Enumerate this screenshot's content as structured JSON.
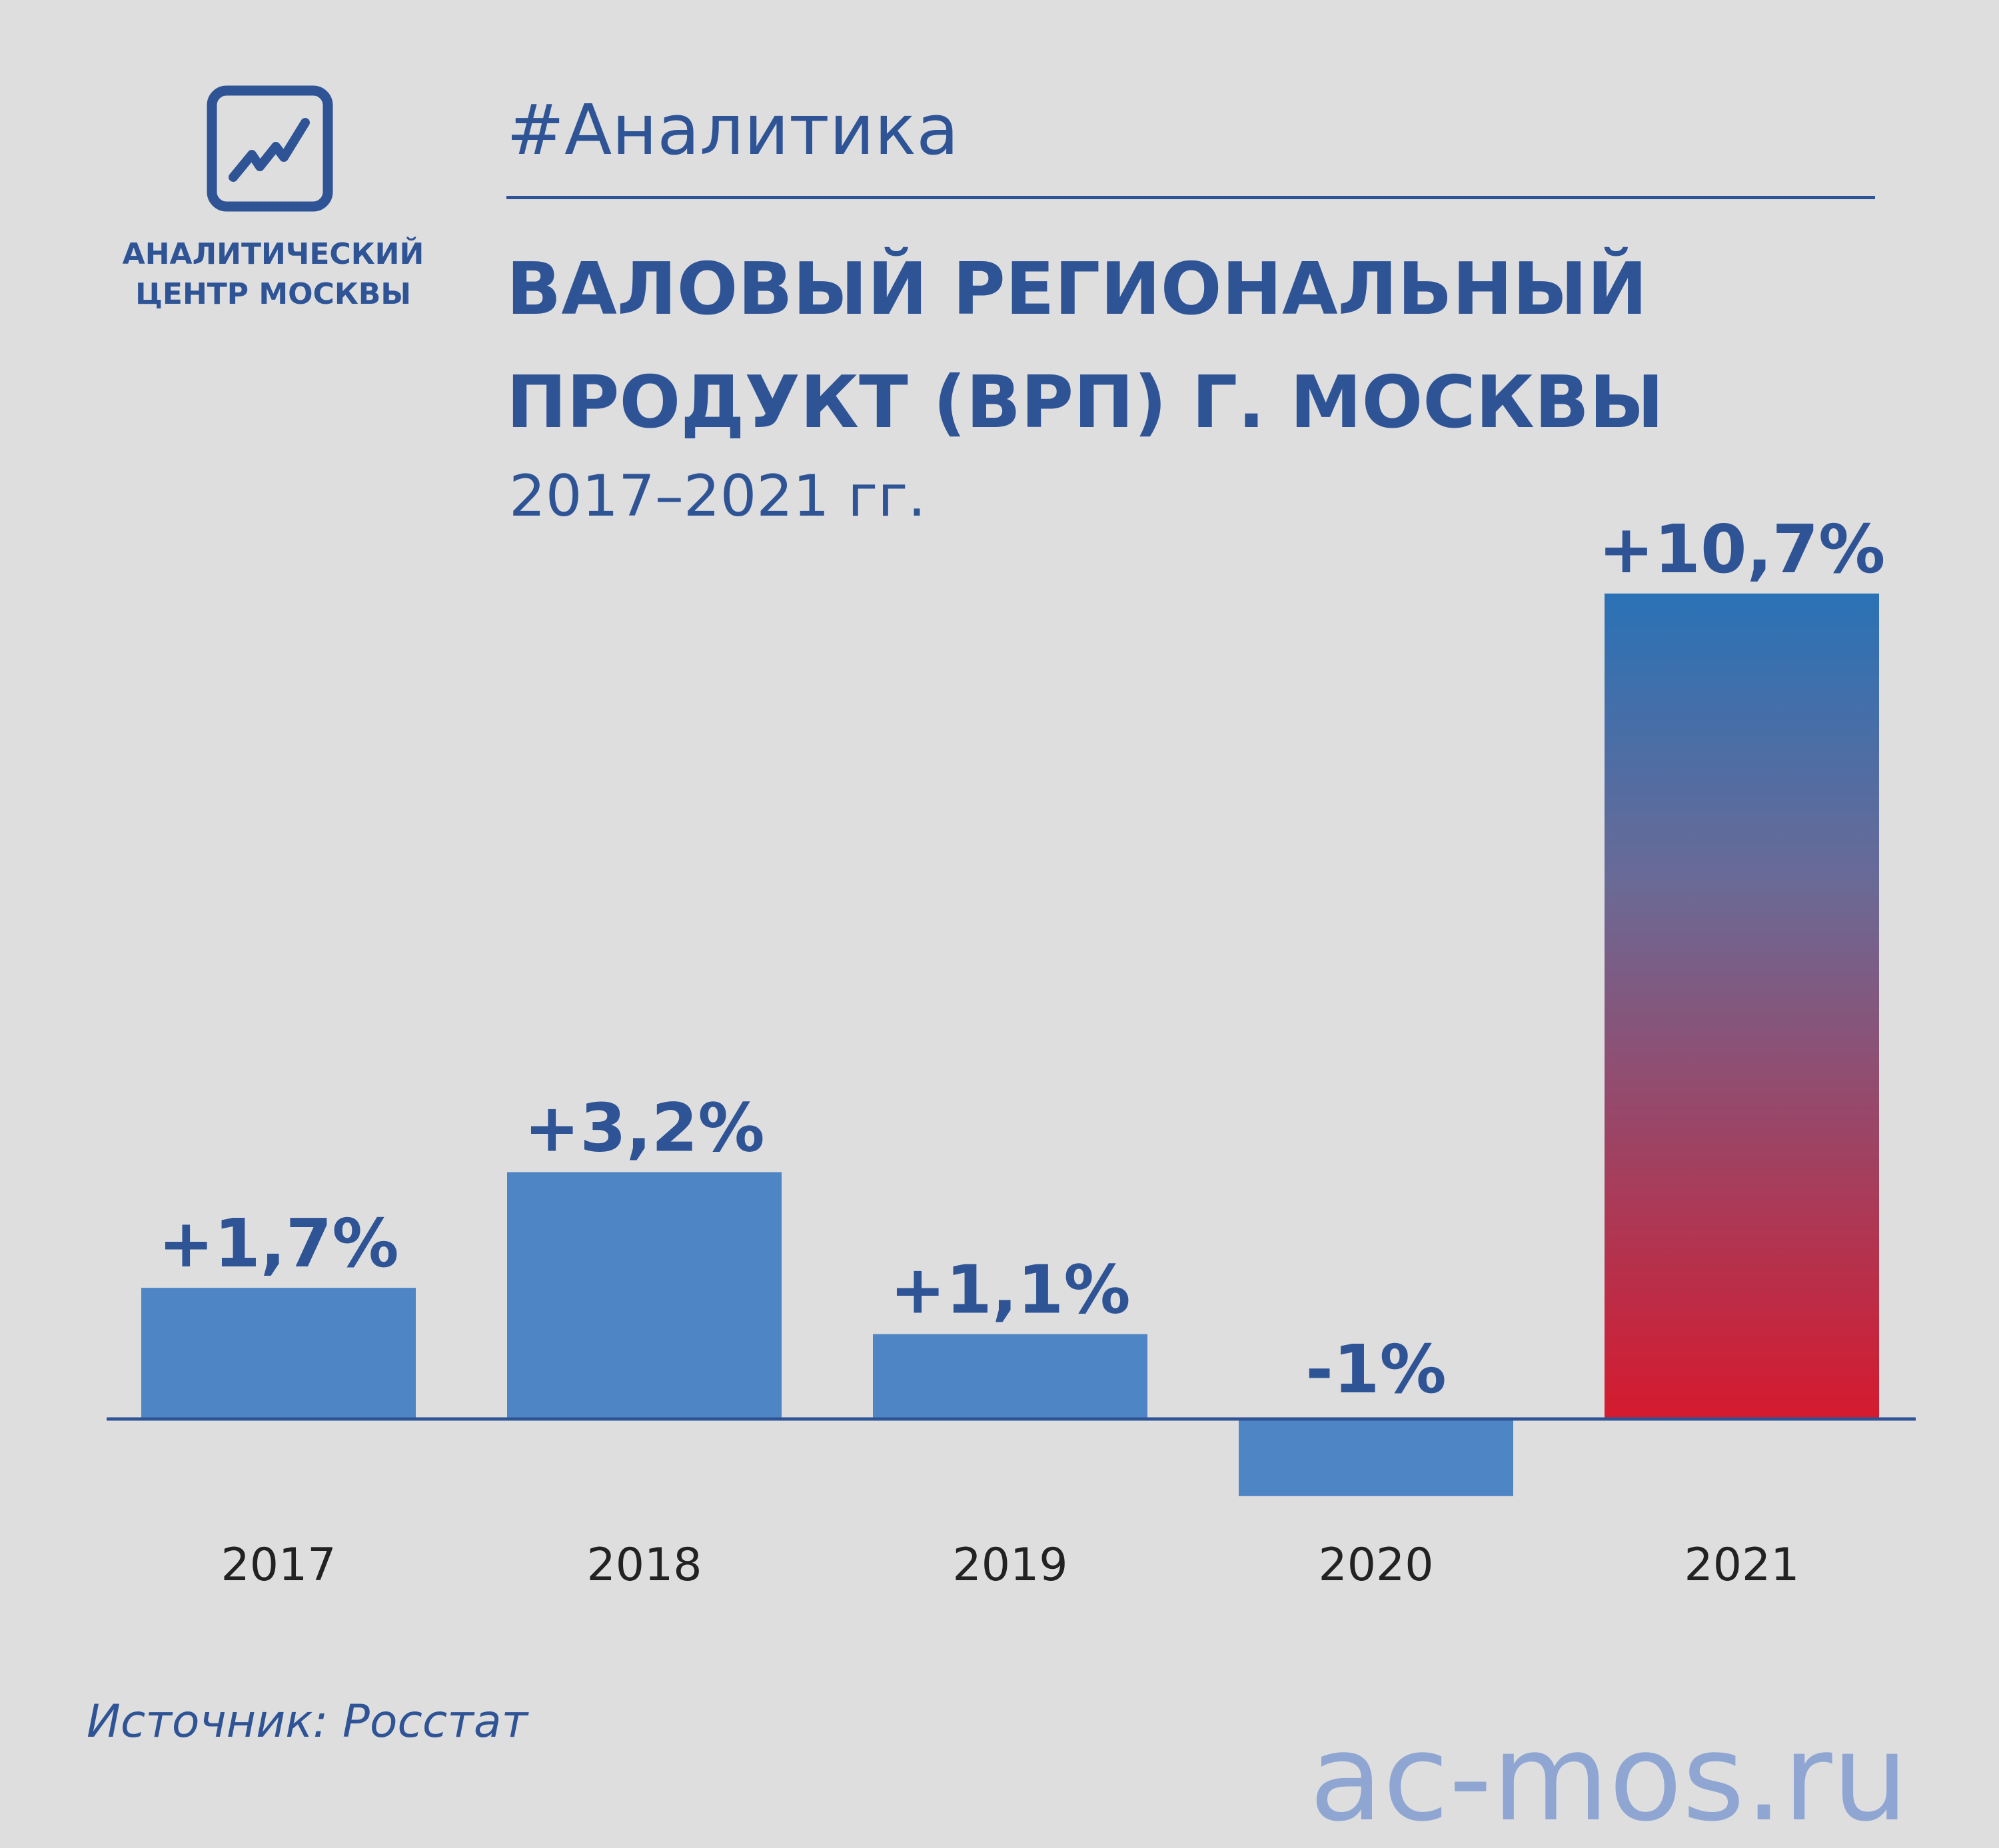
{
  "branding": {
    "logo_icon": "rising-chart-icon",
    "org_name_line1": "АНАЛИТИЧЕСКИЙ",
    "org_name_line2": "ЦЕНТР МОСКВЫ"
  },
  "header": {
    "hashtag": "#Аналитика",
    "title_line1": "ВАЛОВЫЙ РЕГИОНАЛЬНЫЙ",
    "title_line2": "ПРОДУКТ (ВРП) Г. МОСКВЫ",
    "subtitle": "2017–2021 гг."
  },
  "colors": {
    "background": "#dedede",
    "brand_blue": "#2f5496",
    "bar_blue": "#4e85c5",
    "gradient_top": "#2a72b6",
    "gradient_bottom": "#d51a2e",
    "site_color": "#8fa6d3",
    "axis_text": "#222222"
  },
  "chart_data": {
    "type": "bar",
    "title": "ВАЛОВЫЙ РЕГИОНАЛЬНЫЙ ПРОДУКТ (ВРП) Г. МОСКВЫ",
    "subtitle": "2017–2021 гг.",
    "categories": [
      "2017",
      "2018",
      "2019",
      "2020",
      "2021"
    ],
    "values": [
      1.7,
      3.2,
      1.1,
      -1.0,
      10.7
    ],
    "data_labels": [
      "+1,7%",
      "+3,2%",
      "+1,1%",
      "-1%",
      "+10,7%"
    ],
    "highlight_index": 4,
    "unit": "%",
    "grid": false,
    "legend": "none"
  },
  "footer": {
    "source": "Источник: Росстат",
    "site": "ac-mos.ru"
  }
}
